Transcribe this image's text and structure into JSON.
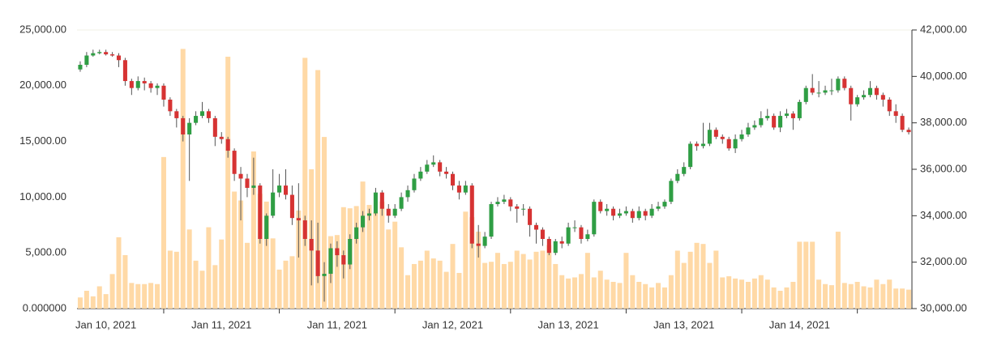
{
  "chart_data": {
    "type": "candlestick",
    "categories": [
      null,
      null,
      null,
      null,
      "Jan 10, 2021",
      null,
      null,
      null,
      null,
      null,
      null,
      null,
      null,
      null,
      null,
      null,
      null,
      null,
      null,
      null,
      null,
      null,
      "Jan 11, 2021",
      null,
      null,
      null,
      null,
      null,
      null,
      null,
      null,
      null,
      null,
      null,
      null,
      null,
      null,
      null,
      null,
      null,
      "Jan 11, 2021",
      null,
      null,
      null,
      null,
      null,
      null,
      null,
      null,
      null,
      null,
      null,
      null,
      null,
      null,
      null,
      null,
      null,
      "Jan 12, 2021",
      null,
      null,
      null,
      null,
      null,
      null,
      null,
      null,
      null,
      null,
      null,
      null,
      null,
      null,
      null,
      null,
      null,
      "Jan 13, 2021",
      null,
      null,
      null,
      null,
      null,
      null,
      null,
      null,
      null,
      null,
      null,
      null,
      null,
      null,
      null,
      null,
      null,
      "Jan 13, 2021",
      null,
      null,
      null,
      null,
      null,
      null,
      null,
      null,
      null,
      null,
      null,
      null,
      null,
      null,
      null,
      null,
      null,
      "Jan 14, 2021",
      null,
      null,
      null,
      null,
      null,
      null,
      null,
      null,
      null,
      null,
      null,
      null,
      null,
      null,
      null,
      null,
      null
    ],
    "open": [
      40300,
      40500,
      40900,
      41000,
      41050,
      40950,
      40900,
      40700,
      39800,
      39500,
      39800,
      39700,
      39500,
      39600,
      39000,
      38500,
      38200,
      37500,
      38000,
      38300,
      38500,
      38200,
      37400,
      37300,
      36800,
      35800,
      35600,
      35200,
      35300,
      33000,
      34000,
      35000,
      35300,
      34900,
      33900,
      33800,
      33000,
      32500,
      31400,
      31500,
      32600,
      32300,
      31900,
      33000,
      33500,
      34000,
      34100,
      35000,
      34300,
      34000,
      34300,
      34800,
      35100,
      35600,
      35900,
      36200,
      36300,
      35900,
      35800,
      35300,
      35000,
      35300,
      32800,
      32700,
      33100,
      34500,
      34600,
      34700,
      34400,
      34300,
      34300,
      33600,
      33400,
      33000,
      32400,
      32900,
      32800,
      33500,
      33500,
      33000,
      33200,
      34600,
      34200,
      34300,
      34000,
      34100,
      34200,
      33900,
      34200,
      34000,
      34300,
      34400,
      34600,
      35500,
      35800,
      36100,
      37100,
      37000,
      37100,
      37700,
      37400,
      37300,
      36900,
      37300,
      37500,
      37800,
      37900,
      38200,
      38300,
      37800,
      38300,
      38400,
      38200,
      38900,
      39500,
      39300,
      39300,
      39400,
      39400,
      39900,
      39500,
      38800,
      39100,
      39200,
      39500,
      39200,
      39000,
      38500,
      38300,
      37700
    ],
    "high": [
      40650,
      41050,
      41150,
      41150,
      41150,
      41050,
      41000,
      40800,
      39900,
      40000,
      39950,
      39800,
      39700,
      39700,
      39100,
      38600,
      38300,
      38200,
      38500,
      38900,
      38600,
      38300,
      37600,
      37400,
      36900,
      36100,
      35800,
      36500,
      35400,
      34100,
      36000,
      35800,
      36000,
      35300,
      35400,
      34000,
      33800,
      33700,
      32000,
      32800,
      32900,
      32500,
      33200,
      33700,
      34200,
      34300,
      35200,
      35100,
      34500,
      34500,
      35000,
      35300,
      35800,
      36100,
      36400,
      36600,
      36400,
      36100,
      35900,
      35500,
      35500,
      35400,
      33600,
      33300,
      34600,
      34800,
      34900,
      34800,
      34500,
      34500,
      34400,
      33700,
      33500,
      33100,
      33000,
      33100,
      33700,
      33800,
      33600,
      33400,
      34700,
      34700,
      34500,
      34400,
      34300,
      34400,
      34300,
      34400,
      34300,
      34500,
      34600,
      34700,
      35600,
      36000,
      36300,
      37200,
      37200,
      38000,
      38000,
      37800,
      37500,
      37400,
      37500,
      37700,
      38000,
      38100,
      38500,
      38600,
      38400,
      38500,
      38600,
      38500,
      39000,
      39600,
      40100,
      39800,
      39600,
      39900,
      40000,
      40000,
      39600,
      39200,
      39400,
      39800,
      39600,
      39300,
      39100,
      38800,
      38400,
      37800
    ],
    "low": [
      40200,
      40400,
      40850,
      40950,
      40900,
      40850,
      40400,
      39600,
      39200,
      39400,
      39400,
      39300,
      39200,
      38700,
      38300,
      37800,
      37200,
      35500,
      37900,
      38200,
      38000,
      37000,
      37100,
      36500,
      35500,
      33800,
      34800,
      34900,
      32800,
      32700,
      33900,
      34800,
      34700,
      33600,
      32200,
      32700,
      31000,
      31100,
      30300,
      31100,
      31800,
      31300,
      31700,
      32800,
      33300,
      33800,
      34000,
      34000,
      33700,
      33900,
      34200,
      34600,
      35000,
      35500,
      35800,
      36100,
      35700,
      35600,
      35100,
      34700,
      34900,
      32600,
      32200,
      32600,
      33000,
      34400,
      34500,
      34200,
      33700,
      34000,
      33100,
      32800,
      32700,
      32300,
      32300,
      32600,
      32700,
      33300,
      32800,
      32900,
      33100,
      34100,
      34000,
      33800,
      33900,
      34000,
      33700,
      33800,
      33800,
      33900,
      34200,
      34300,
      34500,
      35400,
      35700,
      36000,
      36800,
      36900,
      37000,
      37300,
      37100,
      36800,
      36700,
      37200,
      37400,
      37700,
      37800,
      38100,
      37700,
      37600,
      38200,
      37700,
      38100,
      38800,
      39200,
      39100,
      39200,
      39200,
      39300,
      39400,
      38100,
      38700,
      39000,
      39100,
      39000,
      38700,
      38300,
      38000,
      37600,
      37500
    ],
    "close": [
      40500,
      40900,
      41000,
      41050,
      40950,
      40900,
      40700,
      39800,
      39500,
      39800,
      39700,
      39500,
      39600,
      39000,
      38500,
      38200,
      37500,
      38000,
      38300,
      38500,
      38200,
      37400,
      37300,
      36800,
      35800,
      35600,
      35200,
      35300,
      33000,
      34000,
      35000,
      35300,
      34900,
      33900,
      33800,
      33000,
      32500,
      31400,
      31500,
      32600,
      32300,
      31900,
      33000,
      33500,
      34000,
      34100,
      35000,
      34300,
      34000,
      34300,
      34800,
      35100,
      35600,
      35900,
      36200,
      36300,
      35900,
      35800,
      35300,
      35000,
      35300,
      32800,
      32700,
      33100,
      34500,
      34600,
      34700,
      34400,
      34300,
      34300,
      33600,
      33400,
      33000,
      32400,
      32900,
      32800,
      33500,
      33500,
      33000,
      33200,
      34600,
      34200,
      34300,
      34000,
      34100,
      34200,
      33900,
      34200,
      34000,
      34300,
      34400,
      34600,
      35500,
      35800,
      36100,
      37100,
      37000,
      37100,
      37700,
      37400,
      37300,
      36900,
      37300,
      37500,
      37800,
      37900,
      38200,
      38300,
      37800,
      38300,
      38400,
      38200,
      38900,
      39500,
      39300,
      39300,
      39400,
      39400,
      39900,
      39500,
      38800,
      39100,
      39200,
      39500,
      39200,
      39000,
      38500,
      38300,
      37700,
      37600
    ],
    "axis": "y2",
    "up_color": "#2f9e44",
    "down_color": "#d63333",
    "wick_color": "#555555",
    "volume": {
      "type": "bar",
      "color": "#ffd9a6",
      "values": [
        1000,
        1600,
        1100,
        2000,
        1300,
        3100,
        6400,
        4800,
        2300,
        2200,
        2200,
        2300,
        2200,
        13600,
        5200,
        5100,
        23300,
        7100,
        4300,
        3400,
        7300,
        3900,
        6200,
        22600,
        10500,
        9700,
        5900,
        14100,
        10300,
        9600,
        6300,
        3500,
        4300,
        4700,
        8800,
        22500,
        12500,
        21400,
        15400,
        6500,
        6600,
        9100,
        9000,
        9200,
        11400,
        9300,
        8600,
        9600,
        7100,
        7800,
        5500,
        3000,
        4000,
        4300,
        5200,
        4500,
        4300,
        3300,
        5800,
        3200,
        8700,
        8200,
        6900,
        4100,
        4200,
        5000,
        4000,
        4200,
        5200,
        4900,
        4400,
        5100,
        5200,
        5700,
        4000,
        3000,
        2700,
        2800,
        3100,
        5000,
        2800,
        3400,
        2600,
        2400,
        2300,
        5000,
        3000,
        2400,
        2200,
        1900,
        2300,
        1900,
        3000,
        5200,
        4100,
        5100,
        5900,
        5800,
        4100,
        5200,
        2800,
        2900,
        2700,
        2600,
        2400,
        2700,
        3000,
        2600,
        1900,
        1600,
        1900,
        2400,
        6000,
        6000,
        6000,
        2600,
        2200,
        2100,
        6900,
        2300,
        2200,
        2400,
        2000,
        1900,
        2600,
        2200,
        2600,
        1800,
        1800,
        1700
      ]
    },
    "ylim": [
      0,
      25000
    ],
    "yticks": [
      {
        "value": 0,
        "label": "0.000000"
      },
      {
        "value": 5000,
        "label": "5,000.00"
      },
      {
        "value": 10000,
        "label": "10,000.00"
      },
      {
        "value": 15000,
        "label": "15,000.00"
      },
      {
        "value": 20000,
        "label": "20,000.00"
      },
      {
        "value": 25000,
        "label": "25,000.00"
      }
    ],
    "y2lim": [
      30000,
      42000
    ],
    "y2ticks": [
      {
        "value": 30000,
        "label": "30,000.00"
      },
      {
        "value": 32000,
        "label": "32,000.00"
      },
      {
        "value": 34000,
        "label": "34,000.00"
      },
      {
        "value": 36000,
        "label": "36,000.00"
      },
      {
        "value": 38000,
        "label": "38,000.00"
      },
      {
        "value": 40000,
        "label": "40,000.00"
      },
      {
        "value": 42000,
        "label": "42,000.00"
      }
    ]
  }
}
